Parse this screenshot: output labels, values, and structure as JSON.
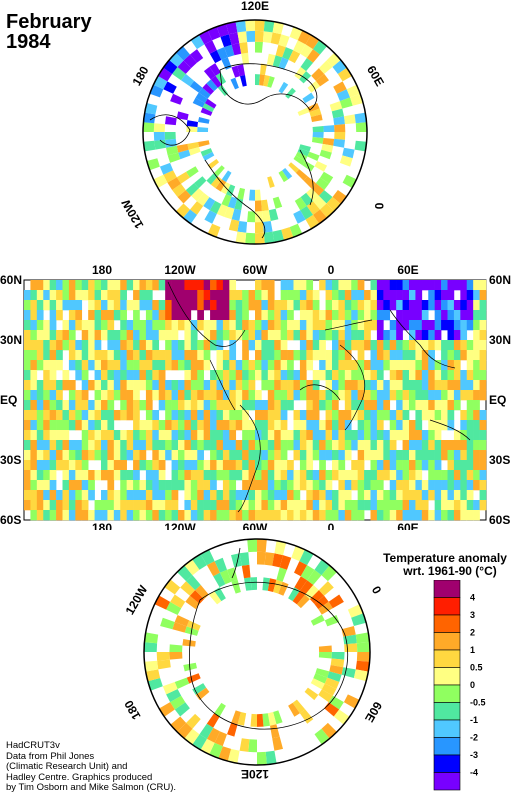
{
  "title": {
    "month": "February",
    "year": "1984"
  },
  "dataset": "HadCRUT3v",
  "credits": [
    "Data from Phil Jones",
    "(Climatic Research Unit) and",
    "Hadley Centre.  Graphics produced",
    "by Tim Osborn and Mike Salmon (CRU)."
  ],
  "map": {
    "lon_labels": [
      "180",
      "120W",
      "60W",
      "0",
      "60E"
    ],
    "lat_labels": [
      "60N",
      "30N",
      "EQ",
      "30S",
      "60S"
    ]
  },
  "north_polar": {
    "labels": [
      "120E",
      "180",
      "60E",
      "120W",
      "0"
    ]
  },
  "south_polar": {
    "labels": [
      "120W",
      "0",
      "180",
      "60E",
      "120E"
    ]
  },
  "legend": {
    "title_line1": "Temperature anomaly",
    "title_line2": "wrt. 1961-90  (°C)",
    "levels": [
      "4",
      "3",
      "2",
      "1",
      "0.5",
      "0",
      "-0.5",
      "-1",
      "-2",
      "-3",
      "-4"
    ],
    "colors": [
      "#a0006e",
      "#ff1e00",
      "#ff6400",
      "#ffaa28",
      "#ffd840",
      "#ffff82",
      "#90ff60",
      "#50e8a0",
      "#50c8ff",
      "#2896ff",
      "#0000ff",
      "#7800ff"
    ]
  }
}
